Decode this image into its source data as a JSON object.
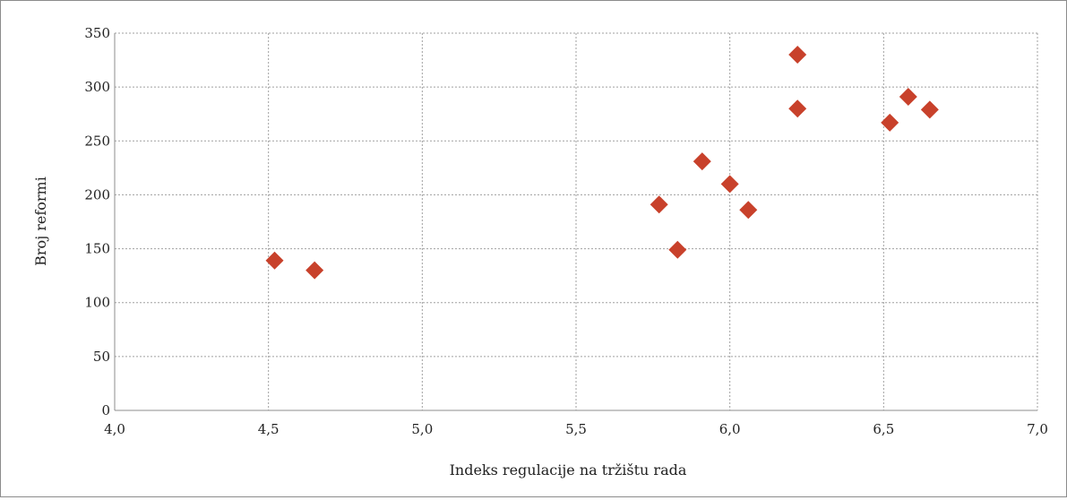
{
  "chart_data": {
    "type": "scatter",
    "title": "",
    "xlabel": "Indeks regulacije na tržištu rada",
    "ylabel": "Broj reformi",
    "xlim": [
      4.0,
      7.0
    ],
    "ylim": [
      0,
      350
    ],
    "x_ticks": [
      4.0,
      4.5,
      5.0,
      5.5,
      6.0,
      6.5,
      7.0
    ],
    "x_tick_labels": [
      "4,0",
      "4,5",
      "5,0",
      "5,5",
      "6,0",
      "6,5",
      "7,0"
    ],
    "y_ticks": [
      0,
      50,
      100,
      150,
      200,
      250,
      300,
      350
    ],
    "y_tick_labels": [
      "0",
      "50",
      "100",
      "150",
      "200",
      "250",
      "300",
      "350"
    ],
    "grid": true,
    "marker": "diamond",
    "marker_color": "#c8412b",
    "points": [
      {
        "x": 4.52,
        "y": 139
      },
      {
        "x": 4.65,
        "y": 130
      },
      {
        "x": 5.77,
        "y": 191
      },
      {
        "x": 5.83,
        "y": 149
      },
      {
        "x": 5.91,
        "y": 231
      },
      {
        "x": 6.0,
        "y": 210
      },
      {
        "x": 6.06,
        "y": 186
      },
      {
        "x": 6.22,
        "y": 330
      },
      {
        "x": 6.22,
        "y": 280
      },
      {
        "x": 6.52,
        "y": 267
      },
      {
        "x": 6.58,
        "y": 291
      },
      {
        "x": 6.65,
        "y": 279
      }
    ]
  }
}
